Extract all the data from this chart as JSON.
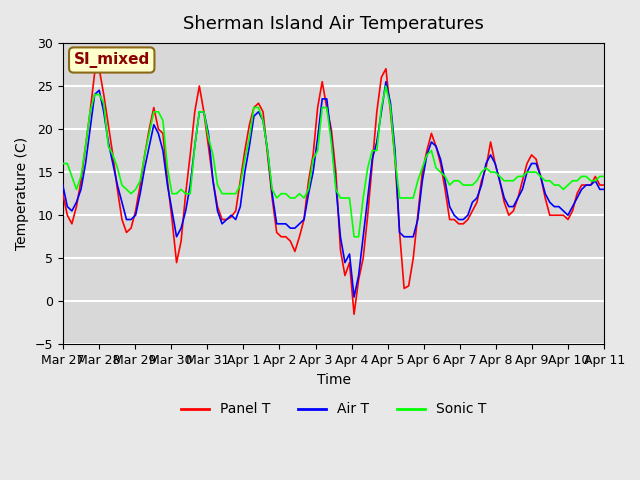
{
  "title": "Sherman Island Air Temperatures",
  "xlabel": "Time",
  "ylabel": "Temperature (C)",
  "annotation": "SI_mixed",
  "ylim": [
    -5,
    30
  ],
  "legend_entries": [
    "Panel T",
    "Air T",
    "Sonic T"
  ],
  "legend_colors": [
    "red",
    "blue",
    "green"
  ],
  "xtick_labels": [
    "Mar 27",
    "Mar 28",
    "Mar 29",
    "Mar 30",
    "Mar 31",
    "Apr 1",
    "Apr 2",
    "Apr 3",
    "Apr 4",
    "Apr 5",
    "Apr 6",
    "Apr 7",
    "Apr 8",
    "Apr 9",
    "Apr 10",
    "Apr 11"
  ],
  "ytick_values": [
    -5,
    0,
    5,
    10,
    15,
    20,
    25,
    30
  ],
  "bg_color": "#e8e8e8",
  "plot_bg_color": "#d8d8d8",
  "grid_color": "white",
  "annotation_bg": "#ffffcc",
  "annotation_fg": "#8b0000",
  "panel_t": [
    12.5,
    10.0,
    9.0,
    11.0,
    14.0,
    18.0,
    22.0,
    26.5,
    27.0,
    24.0,
    20.5,
    17.0,
    13.0,
    9.5,
    8.0,
    8.5,
    10.5,
    13.5,
    17.0,
    20.0,
    22.5,
    20.0,
    19.5,
    14.0,
    9.5,
    4.5,
    7.0,
    12.5,
    17.0,
    22.0,
    25.0,
    22.0,
    18.0,
    14.0,
    11.0,
    9.5,
    9.5,
    9.8,
    10.5,
    14.0,
    17.5,
    20.5,
    22.5,
    23.0,
    22.0,
    17.0,
    12.0,
    8.0,
    7.5,
    7.5,
    7.0,
    5.8,
    7.5,
    9.5,
    14.0,
    17.0,
    22.5,
    25.5,
    22.5,
    20.0,
    15.0,
    6.0,
    3.0,
    4.5,
    -1.5,
    2.5,
    5.0,
    10.0,
    16.0,
    22.0,
    26.0,
    27.0,
    22.0,
    16.5,
    8.0,
    1.5,
    1.8,
    5.0,
    10.0,
    15.0,
    17.5,
    19.5,
    18.0,
    16.0,
    13.0,
    9.5,
    9.5,
    9.0,
    9.0,
    9.5,
    10.5,
    11.5,
    14.0,
    15.5,
    18.5,
    16.0,
    14.0,
    11.5,
    10.0,
    10.5,
    12.0,
    14.0,
    16.0,
    17.0,
    16.5,
    14.5,
    12.0,
    10.0,
    10.0,
    10.0,
    10.0,
    9.5,
    10.5,
    12.5,
    13.5,
    13.5,
    13.5,
    14.5,
    13.5,
    13.5
  ],
  "air_t": [
    13.5,
    11.0,
    10.5,
    11.5,
    13.0,
    16.0,
    20.0,
    24.0,
    24.5,
    22.0,
    18.5,
    16.0,
    13.5,
    11.5,
    9.5,
    9.5,
    10.0,
    12.5,
    15.5,
    18.0,
    20.5,
    19.5,
    17.5,
    13.5,
    10.5,
    7.5,
    8.5,
    10.5,
    13.5,
    18.0,
    22.0,
    22.0,
    19.5,
    14.0,
    10.5,
    9.0,
    9.5,
    10.0,
    9.5,
    11.0,
    15.0,
    18.0,
    21.5,
    22.0,
    21.0,
    17.5,
    12.5,
    9.0,
    9.0,
    9.0,
    8.5,
    8.5,
    9.0,
    9.5,
    12.5,
    15.0,
    19.0,
    23.5,
    23.5,
    19.0,
    13.5,
    7.5,
    4.5,
    5.5,
    0.5,
    3.0,
    7.5,
    12.0,
    16.5,
    18.5,
    22.0,
    25.5,
    23.0,
    17.5,
    8.0,
    7.5,
    7.5,
    7.5,
    9.5,
    14.0,
    17.0,
    18.5,
    18.0,
    16.5,
    14.0,
    11.0,
    10.0,
    9.5,
    9.5,
    10.0,
    11.5,
    12.0,
    13.5,
    16.0,
    17.0,
    16.0,
    14.0,
    12.0,
    11.0,
    11.0,
    12.0,
    13.0,
    15.0,
    16.0,
    16.0,
    14.5,
    12.5,
    11.5,
    11.0,
    11.0,
    10.5,
    10.0,
    11.0,
    12.0,
    13.0,
    13.5,
    13.5,
    14.0,
    13.0,
    13.0
  ],
  "sonic_t": [
    16.0,
    16.0,
    14.5,
    13.0,
    14.5,
    18.0,
    22.0,
    24.0,
    24.0,
    23.0,
    18.0,
    17.0,
    15.5,
    13.5,
    13.0,
    12.5,
    13.0,
    14.0,
    17.0,
    19.5,
    22.0,
    22.0,
    21.0,
    15.5,
    12.5,
    12.5,
    13.0,
    12.5,
    12.5,
    18.0,
    22.0,
    22.0,
    19.0,
    17.0,
    13.5,
    12.5,
    12.5,
    12.5,
    12.5,
    13.5,
    16.5,
    19.0,
    22.5,
    22.5,
    21.0,
    17.5,
    13.0,
    12.0,
    12.5,
    12.5,
    12.0,
    12.0,
    12.5,
    12.0,
    13.0,
    16.5,
    17.5,
    22.5,
    22.5,
    18.5,
    13.0,
    12.0,
    12.0,
    12.0,
    7.5,
    7.5,
    12.0,
    15.5,
    17.5,
    17.5,
    22.5,
    25.0,
    22.5,
    16.5,
    12.0,
    12.0,
    12.0,
    12.0,
    14.0,
    15.5,
    17.0,
    17.5,
    15.5,
    15.0,
    14.5,
    13.5,
    14.0,
    14.0,
    13.5,
    13.5,
    13.5,
    14.0,
    15.0,
    15.5,
    15.0,
    15.0,
    14.5,
    14.0,
    14.0,
    14.0,
    14.5,
    14.5,
    15.0,
    15.0,
    15.0,
    14.5,
    14.0,
    14.0,
    13.5,
    13.5,
    13.0,
    13.5,
    14.0,
    14.0,
    14.5,
    14.5,
    14.0,
    14.0,
    14.5,
    14.5
  ]
}
